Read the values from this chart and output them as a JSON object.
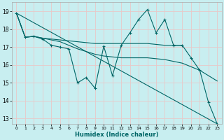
{
  "xlabel": "Humidex (Indice chaleur)",
  "bg_color": "#c8eef0",
  "grid_color": "#e8c8c8",
  "line_color": "#006666",
  "xlim": [
    -0.5,
    23.5
  ],
  "ylim": [
    12.7,
    19.5
  ],
  "yticks": [
    13,
    14,
    15,
    16,
    17,
    18,
    19
  ],
  "xticks": [
    0,
    1,
    2,
    3,
    4,
    5,
    6,
    7,
    8,
    9,
    10,
    11,
    12,
    13,
    14,
    15,
    16,
    17,
    18,
    19,
    20,
    21,
    22,
    23
  ],
  "series": [
    {
      "x": [
        0,
        1,
        2,
        3,
        4,
        5,
        6,
        7,
        8,
        9,
        10,
        11,
        12,
        13,
        14,
        15,
        16,
        17,
        18,
        19,
        20,
        21,
        22,
        23
      ],
      "y": [
        18.9,
        17.55,
        17.6,
        17.45,
        17.1,
        17.0,
        16.9,
        15.0,
        15.3,
        14.7,
        17.05,
        15.4,
        17.1,
        17.8,
        18.55,
        19.1,
        17.8,
        18.55,
        17.1,
        17.1,
        16.4,
        15.7,
        13.9,
        12.7
      ],
      "marker": "+"
    },
    {
      "x": [
        0,
        1,
        2,
        3,
        4,
        5,
        6,
        7,
        8,
        9,
        10,
        11,
        12,
        13,
        14,
        15,
        16,
        17,
        18,
        19
      ],
      "y": [
        18.9,
        17.55,
        17.6,
        17.5,
        17.45,
        17.4,
        17.35,
        17.3,
        17.25,
        17.2,
        17.2,
        17.2,
        17.2,
        17.2,
        17.2,
        17.2,
        17.15,
        17.1,
        17.1,
        17.1
      ],
      "marker": null
    },
    {
      "x": [
        0,
        1,
        2,
        3,
        4,
        5,
        6,
        7,
        8,
        9,
        10,
        11,
        12,
        13,
        14,
        15,
        16,
        17,
        18,
        19,
        20,
        21,
        22,
        23
      ],
      "y": [
        18.9,
        17.55,
        17.6,
        17.5,
        17.4,
        17.3,
        17.1,
        16.9,
        16.75,
        16.6,
        16.5,
        16.45,
        16.4,
        16.4,
        16.4,
        16.4,
        16.35,
        16.3,
        16.2,
        16.1,
        15.9,
        15.7,
        15.4,
        15.1
      ],
      "marker": null
    },
    {
      "x": [
        0,
        23
      ],
      "y": [
        18.9,
        12.7
      ],
      "marker": null
    }
  ]
}
